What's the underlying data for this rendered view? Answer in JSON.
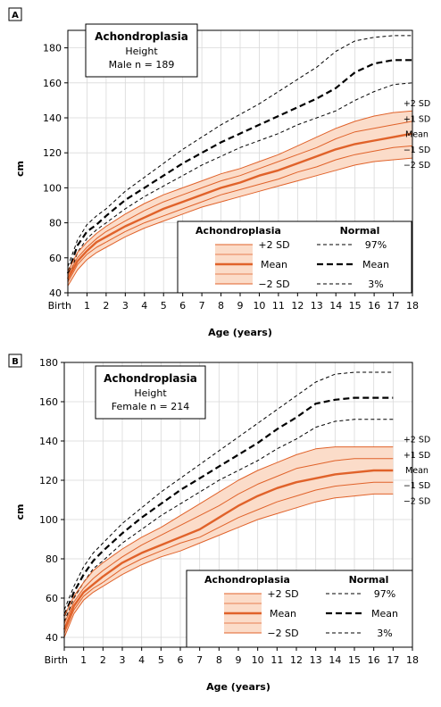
{
  "chart_data": [
    {
      "panel": "A",
      "type": "line",
      "title": "Achondroplasia",
      "subtitle": "Height",
      "sample": "Male n = 189",
      "xlabel": "Age (years)",
      "ylabel": "cm",
      "xlim": [
        0,
        18
      ],
      "ylim": [
        40,
        190
      ],
      "yticks": [
        40,
        60,
        80,
        100,
        120,
        140,
        160,
        180
      ],
      "xticks": [
        {
          "v": 0,
          "label": "Birth"
        },
        {
          "v": 1,
          "label": "1"
        },
        {
          "v": 2,
          "label": "2"
        },
        {
          "v": 3,
          "label": "3"
        },
        {
          "v": 4,
          "label": "4"
        },
        {
          "v": 5,
          "label": "5"
        },
        {
          "v": 6,
          "label": "6"
        },
        {
          "v": 7,
          "label": "7"
        },
        {
          "v": 8,
          "label": "8"
        },
        {
          "v": 9,
          "label": "9"
        },
        {
          "v": 10,
          "label": "10"
        },
        {
          "v": 11,
          "label": "11"
        },
        {
          "v": 12,
          "label": "12"
        },
        {
          "v": 13,
          "label": "13"
        },
        {
          "v": 14,
          "label": "14"
        },
        {
          "v": 15,
          "label": "15"
        },
        {
          "v": 16,
          "label": "16"
        },
        {
          "v": 17,
          "label": "17"
        },
        {
          "v": 18,
          "label": "18"
        }
      ],
      "grid": true,
      "legend_position": "bottom-right",
      "x": [
        0,
        0.5,
        1,
        1.5,
        2,
        3,
        4,
        5,
        6,
        7,
        8,
        9,
        10,
        11,
        12,
        13,
        14,
        15,
        16,
        17,
        18
      ],
      "series": [
        {
          "name": "97%",
          "group": "Normal",
          "style": "dashed-thin",
          "values": [
            55,
            70,
            79,
            84,
            88,
            98,
            106,
            114,
            122,
            129,
            136,
            142,
            148,
            155,
            162,
            169,
            178,
            184,
            186,
            187,
            187
          ]
        },
        {
          "name": "Mean",
          "group": "Normal",
          "style": "dashed-thick",
          "values": [
            51,
            67,
            75,
            79,
            84,
            93,
            100,
            107,
            114,
            120,
            126,
            131,
            136,
            141,
            146,
            151,
            157,
            166,
            171,
            173,
            173
          ]
        },
        {
          "name": "3%",
          "group": "Normal",
          "style": "dashed-thin",
          "values": [
            47,
            63,
            71,
            76,
            80,
            88,
            95,
            101,
            107,
            113,
            118,
            123,
            127,
            131,
            136,
            140,
            144,
            150,
            155,
            159,
            160
          ]
        },
        {
          "name": "+2 SD",
          "group": "Achondroplasia",
          "style": "band-upper",
          "values": [
            52,
            63,
            69,
            74,
            78,
            85,
            91,
            96,
            100,
            104,
            108,
            111,
            115,
            119,
            124,
            129,
            134,
            138,
            141,
            143,
            144
          ]
        },
        {
          "name": "+1 SD",
          "group": "Achondroplasia",
          "style": "solid-thin",
          "values": [
            50,
            60,
            66,
            71,
            75,
            81,
            87,
            92,
            96,
            100,
            104,
            107,
            111,
            115,
            119,
            123,
            128,
            132,
            134,
            136,
            138
          ]
        },
        {
          "name": "Mean",
          "group": "Achondroplasia",
          "style": "solid-thick",
          "values": [
            48,
            58,
            64,
            69,
            72,
            78,
            83,
            88,
            92,
            96,
            100,
            103,
            107,
            110,
            114,
            118,
            122,
            125,
            127,
            129,
            131
          ]
        },
        {
          "name": "−1 SD",
          "group": "Achondroplasia",
          "style": "solid-thin",
          "values": [
            46,
            56,
            62,
            66,
            69,
            75,
            80,
            84,
            88,
            92,
            96,
            99,
            102,
            105,
            109,
            112,
            116,
            119,
            121,
            123,
            124
          ]
        },
        {
          "name": "−2 SD",
          "group": "Achondroplasia",
          "style": "band-lower",
          "values": [
            44,
            53,
            59,
            63,
            66,
            72,
            77,
            81,
            85,
            89,
            92,
            95,
            98,
            101,
            104,
            107,
            110,
            113,
            115,
            116,
            117
          ]
        }
      ],
      "right_labels": [
        "+2 SD",
        "+1 SD",
        "Mean",
        "−1 SD",
        "−2 SD"
      ]
    },
    {
      "panel": "B",
      "type": "line",
      "title": "Achondroplasia",
      "subtitle": "Height",
      "sample": "Female n = 214",
      "xlabel": "Age (years)",
      "ylabel": "cm",
      "xlim": [
        0,
        18
      ],
      "ylim": [
        35,
        180
      ],
      "yticks": [
        40,
        60,
        80,
        100,
        120,
        140,
        160,
        180
      ],
      "xticks": [
        {
          "v": 0,
          "label": "Birth"
        },
        {
          "v": 1,
          "label": "1"
        },
        {
          "v": 2,
          "label": "2"
        },
        {
          "v": 3,
          "label": "3"
        },
        {
          "v": 4,
          "label": "4"
        },
        {
          "v": 5,
          "label": "5"
        },
        {
          "v": 6,
          "label": "6"
        },
        {
          "v": 7,
          "label": "7"
        },
        {
          "v": 8,
          "label": "8"
        },
        {
          "v": 9,
          "label": "9"
        },
        {
          "v": 10,
          "label": "10"
        },
        {
          "v": 11,
          "label": "11"
        },
        {
          "v": 12,
          "label": "12"
        },
        {
          "v": 13,
          "label": "13"
        },
        {
          "v": 14,
          "label": "14"
        },
        {
          "v": 15,
          "label": "15"
        },
        {
          "v": 16,
          "label": "16"
        },
        {
          "v": 17,
          "label": "17"
        },
        {
          "v": 18,
          "label": "18"
        }
      ],
      "grid": true,
      "legend_position": "bottom-right",
      "x": [
        0,
        0.5,
        1,
        1.5,
        2,
        3,
        4,
        5,
        6,
        7,
        8,
        9,
        10,
        11,
        12,
        13,
        14,
        15,
        16,
        17
      ],
      "series": [
        {
          "name": "97%",
          "group": "Normal",
          "style": "dashed-thin",
          "values": [
            54,
            66,
            76,
            83,
            88,
            98,
            106,
            114,
            121,
            128,
            135,
            142,
            149,
            156,
            163,
            170,
            174,
            175,
            175,
            175
          ]
        },
        {
          "name": "Mean",
          "group": "Normal",
          "style": "dashed-thick",
          "values": [
            51,
            63,
            72,
            79,
            84,
            93,
            101,
            108,
            115,
            121,
            127,
            133,
            139,
            146,
            152,
            159,
            161,
            162,
            162,
            162
          ]
        },
        {
          "name": "3%",
          "group": "Normal",
          "style": "dashed-thin",
          "values": [
            48,
            60,
            68,
            75,
            79,
            88,
            95,
            102,
            108,
            114,
            120,
            125,
            130,
            136,
            141,
            147,
            150,
            151,
            151,
            151
          ]
        },
        {
          "name": "+2 SD",
          "group": "Achondroplasia",
          "style": "band-upper",
          "values": [
            51,
            61,
            68,
            74,
            78,
            85,
            91,
            96,
            102,
            108,
            114,
            120,
            125,
            129,
            133,
            136,
            137,
            137,
            137,
            137
          ]
        },
        {
          "name": "+1 SD",
          "group": "Achondroplasia",
          "style": "solid-thin",
          "values": [
            47,
            58,
            65,
            70,
            74,
            81,
            87,
            92,
            97,
            102,
            107,
            113,
            118,
            122,
            126,
            128,
            130,
            131,
            131,
            131
          ]
        },
        {
          "name": "Mean",
          "group": "Achondroplasia",
          "style": "solid-thick",
          "values": [
            44,
            56,
            63,
            67,
            71,
            78,
            83,
            87,
            91,
            95,
            101,
            107,
            112,
            116,
            119,
            121,
            123,
            124,
            125,
            125
          ]
        },
        {
          "name": "−1 SD",
          "group": "Achondroplasia",
          "style": "solid-thin",
          "values": [
            42,
            54,
            61,
            65,
            68,
            75,
            80,
            84,
            88,
            91,
            96,
            101,
            105,
            109,
            112,
            115,
            117,
            118,
            119,
            119
          ]
        },
        {
          "name": "−2 SD",
          "group": "Achondroplasia",
          "style": "band-lower",
          "values": [
            40,
            52,
            59,
            63,
            66,
            72,
            77,
            81,
            84,
            88,
            92,
            96,
            100,
            103,
            106,
            109,
            111,
            112,
            113,
            113
          ]
        }
      ],
      "right_labels": [
        "+2 SD",
        "+1 SD",
        "Mean",
        "−1 SD",
        "−2 SD"
      ]
    }
  ],
  "legend": {
    "achon_title": "Achondroplasia",
    "normal_title": "Normal",
    "achon_items": [
      "+2 SD",
      "Mean",
      "−2 SD"
    ],
    "normal_items": [
      "97%",
      "Mean",
      "3%"
    ]
  },
  "colors": {
    "achon_line": "#e0622a",
    "achon_fill": "#fbdcc9",
    "normal_line": "#000000",
    "grid": "#d9d9d9"
  }
}
